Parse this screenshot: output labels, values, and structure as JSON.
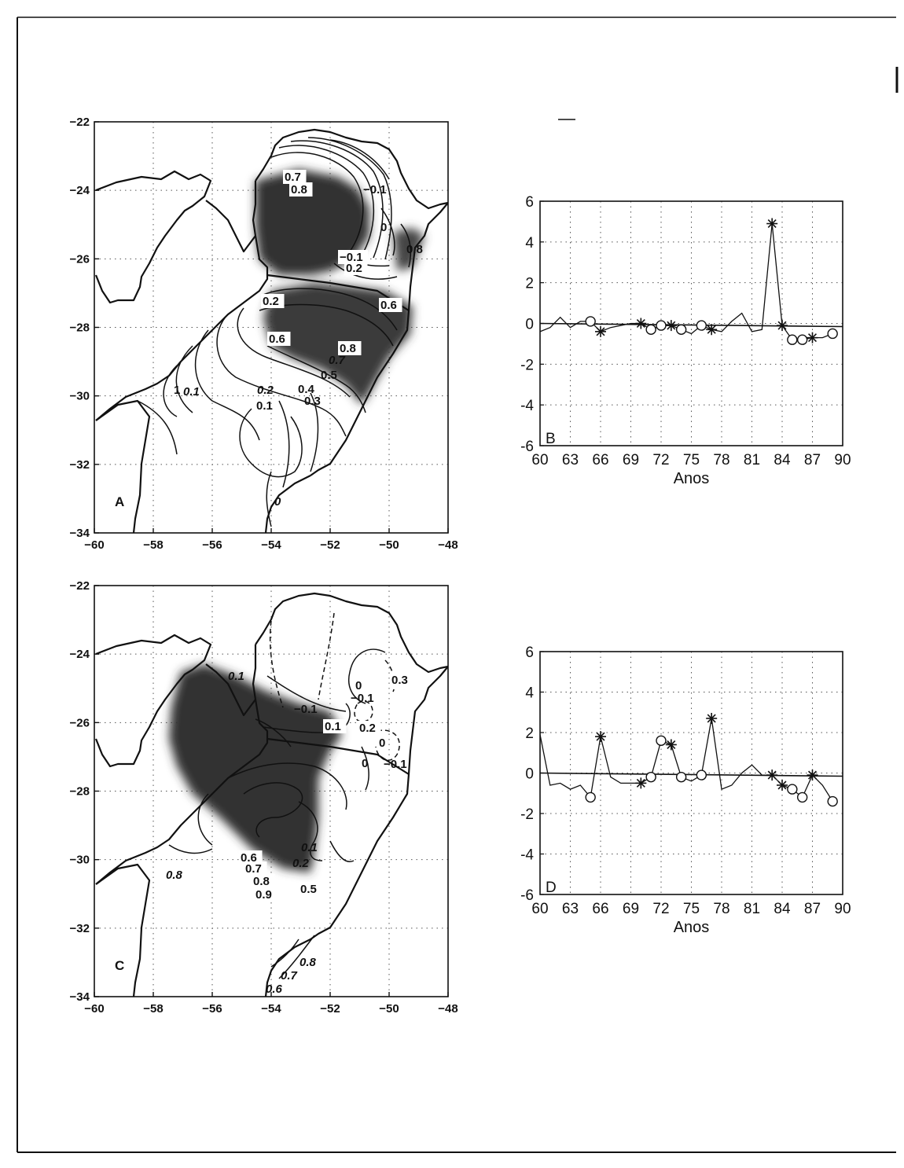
{
  "chart_data": [
    {
      "panel": "A",
      "type": "heatmap",
      "xlim": [
        -60,
        -48
      ],
      "ylim": [
        -34,
        -22
      ],
      "xticks": [
        "-60",
        "-58",
        "-56",
        "-54",
        "-52",
        "-50",
        "-48"
      ],
      "yticks": [
        "-22",
        "-24",
        "-26",
        "-28",
        "-30",
        "-32",
        "-34"
      ],
      "grid": true,
      "panel_label": "A",
      "contour_labels": [
        "0.7",
        "0.8",
        "-0.1",
        "0",
        "-0.1",
        "0.8",
        "0.2",
        "0.2",
        "0.6",
        "0.6",
        "0.8",
        "0.7",
        "0.5",
        "0.4",
        "0.3",
        "0.2",
        "0.1",
        "0.1",
        "1",
        "0"
      ]
    },
    {
      "panel": "B",
      "type": "line",
      "x": [
        60,
        61,
        62,
        63,
        64,
        65,
        66,
        67,
        68,
        69,
        70,
        71,
        72,
        73,
        74,
        75,
        76,
        77,
        78,
        79,
        80,
        81,
        82,
        83,
        84,
        85,
        86,
        87,
        88,
        89
      ],
      "values": [
        -0.4,
        -0.2,
        0.3,
        -0.2,
        0.1,
        0.1,
        -0.4,
        -0.2,
        -0.1,
        0.0,
        0.0,
        -0.3,
        -0.1,
        -0.1,
        -0.3,
        -0.5,
        -0.1,
        -0.3,
        -0.4,
        0.1,
        0.5,
        -0.4,
        -0.3,
        4.9,
        -0.1,
        -0.8,
        -0.8,
        -0.7,
        -0.7,
        -0.5
      ],
      "star_years": [
        66,
        70,
        73,
        77,
        83,
        84,
        87
      ],
      "circle_years": [
        65,
        71,
        72,
        74,
        76,
        85,
        86,
        89
      ],
      "xticks": [
        "60",
        "63",
        "66",
        "69",
        "72",
        "75",
        "78",
        "81",
        "84",
        "87",
        "90"
      ],
      "yticks": [
        "6",
        "4",
        "2",
        "0",
        "-2",
        "-4",
        "-6"
      ],
      "xlim": [
        60,
        90
      ],
      "ylim": [
        -6,
        6
      ],
      "xlabel": "Anos",
      "ylabel": "",
      "grid": true,
      "panel_label": "B"
    },
    {
      "panel": "C",
      "type": "heatmap",
      "xlim": [
        -60,
        -48
      ],
      "ylim": [
        -34,
        -22
      ],
      "xticks": [
        "-60",
        "-58",
        "-56",
        "-54",
        "-52",
        "-50",
        "-48"
      ],
      "yticks": [
        "-22",
        "-24",
        "-26",
        "-28",
        "-30",
        "-32",
        "-34"
      ],
      "grid": true,
      "panel_label": "C",
      "contour_labels": [
        "0.1",
        "-0.1",
        "0",
        "-0.1",
        "0.3",
        "0.1",
        "0.2",
        "0",
        "-0.1",
        "0",
        "0.1",
        "0.2",
        "0.6",
        "0.7",
        "0.8",
        "0.9",
        "0.5",
        "0.8",
        "0.8",
        "0.7",
        "0.6"
      ]
    },
    {
      "panel": "D",
      "type": "line",
      "x": [
        60,
        61,
        62,
        63,
        64,
        65,
        66,
        67,
        68,
        69,
        70,
        71,
        72,
        73,
        74,
        75,
        76,
        77,
        78,
        79,
        80,
        81,
        82,
        83,
        84,
        85,
        86,
        87,
        88,
        89
      ],
      "values": [
        1.9,
        -0.6,
        -0.5,
        -0.8,
        -0.6,
        -1.2,
        1.8,
        -0.2,
        -0.5,
        -0.5,
        -0.5,
        -0.2,
        1.6,
        1.4,
        -0.2,
        -0.4,
        -0.1,
        2.7,
        -0.8,
        -0.6,
        0.0,
        0.4,
        -0.1,
        -0.1,
        -0.6,
        -0.8,
        -1.2,
        -0.1,
        -0.6,
        -1.4
      ],
      "star_years": [
        66,
        70,
        73,
        77,
        83,
        84,
        87
      ],
      "circle_years": [
        65,
        71,
        72,
        74,
        76,
        85,
        86,
        89
      ],
      "xticks": [
        "60",
        "63",
        "66",
        "69",
        "72",
        "75",
        "78",
        "81",
        "84",
        "87",
        "90"
      ],
      "yticks": [
        "6",
        "4",
        "2",
        "0",
        "-2",
        "-4",
        "-6"
      ],
      "xlim": [
        60,
        90
      ],
      "ylim": [
        -6,
        6
      ],
      "xlabel": "Anos",
      "ylabel": "",
      "grid": true,
      "panel_label": "D"
    }
  ]
}
